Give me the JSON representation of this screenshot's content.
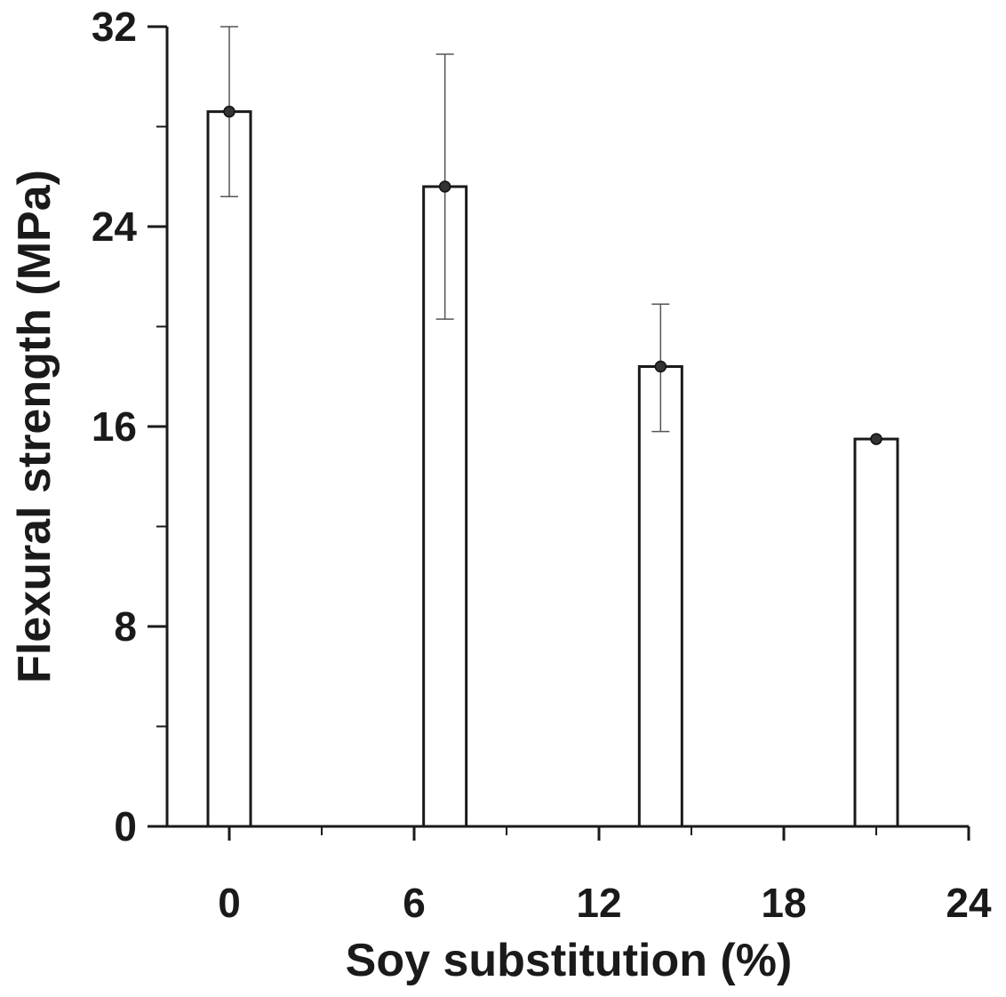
{
  "chart_data": {
    "type": "bar",
    "title": "",
    "xlabel": "Soy substitution (%)",
    "ylabel": "Flexural strength (MPa)",
    "xlim": [
      -2,
      24
    ],
    "ylim": [
      0,
      32
    ],
    "x_ticks": [
      0,
      6,
      12,
      18,
      24
    ],
    "y_ticks": [
      0,
      8,
      16,
      24,
      32
    ],
    "x": [
      0,
      7,
      14,
      21
    ],
    "values": [
      28.6,
      25.6,
      18.4,
      15.5
    ],
    "error_high": [
      32.0,
      30.9,
      20.9,
      15.5
    ],
    "error_low": [
      25.2,
      20.3,
      15.8,
      15.5
    ],
    "bar_color": "#ffffff",
    "edge_color": "#1a1a1a",
    "marker_color": "#333333",
    "grid": false,
    "legend": "none"
  }
}
